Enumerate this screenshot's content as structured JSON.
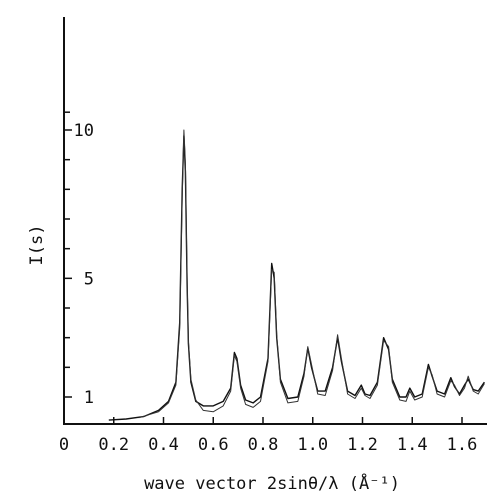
{
  "chart_data": {
    "type": "line",
    "xlabel": "wave vector   2sinθ/λ (Å⁻¹)",
    "ylabel": "I(s)",
    "xlim": [
      0,
      1.7
    ],
    "ylim": [
      0.2,
      11
    ],
    "x_ticks": [
      {
        "value": 0,
        "label": "0"
      },
      {
        "value": 0.2,
        "label": "0.2"
      },
      {
        "value": 0.4,
        "label": "0.4"
      },
      {
        "value": 0.6,
        "label": "0.6"
      },
      {
        "value": 0.8,
        "label": "0.8"
      },
      {
        "value": 1.0,
        "label": "1.0"
      },
      {
        "value": 1.2,
        "label": "1.2"
      },
      {
        "value": 1.4,
        "label": "1.4"
      },
      {
        "value": 1.6,
        "label": "1.6"
      }
    ],
    "y_ticks": [
      {
        "value": 1,
        "label": "1"
      },
      {
        "value": 5,
        "label": "5"
      },
      {
        "value": 10,
        "label": "10"
      }
    ],
    "y_minor_ticks": [
      2,
      3,
      4,
      6,
      7,
      8,
      9,
      10.6
    ],
    "series": [
      {
        "x": [
          0.18,
          0.25,
          0.32,
          0.38,
          0.42,
          0.45,
          0.465,
          0.475,
          0.482,
          0.488,
          0.495,
          0.5,
          0.51,
          0.53,
          0.56,
          0.6,
          0.64,
          0.67,
          0.685,
          0.695,
          0.71,
          0.73,
          0.76,
          0.79,
          0.82,
          0.835,
          0.845,
          0.855,
          0.87,
          0.9,
          0.94,
          0.965,
          0.98,
          0.995,
          1.02,
          1.05,
          1.08,
          1.1,
          1.115,
          1.14,
          1.17,
          1.195,
          1.21,
          1.23,
          1.26,
          1.285,
          1.305,
          1.32,
          1.35,
          1.375,
          1.39,
          1.41,
          1.44,
          1.465,
          1.48,
          1.5,
          1.53,
          1.555,
          1.57,
          1.59,
          1.61,
          1.625,
          1.645,
          1.665,
          1.69
        ],
        "values": [
          0.22,
          0.26,
          0.34,
          0.55,
          0.85,
          1.5,
          3.5,
          8.0,
          9.8,
          8.6,
          4.8,
          2.8,
          1.5,
          0.85,
          0.7,
          0.7,
          0.85,
          1.3,
          2.5,
          2.3,
          1.4,
          0.9,
          0.8,
          1.0,
          2.3,
          5.5,
          5.0,
          3.0,
          1.6,
          0.95,
          1.0,
          1.8,
          2.65,
          2.0,
          1.2,
          1.2,
          2.0,
          3.0,
          2.2,
          1.2,
          1.05,
          1.4,
          1.1,
          1.05,
          1.5,
          3.0,
          2.6,
          1.6,
          1.0,
          1.0,
          1.3,
          1.0,
          1.1,
          2.1,
          1.7,
          1.2,
          1.1,
          1.65,
          1.35,
          1.1,
          1.4,
          1.6,
          1.25,
          1.2,
          1.5
        ]
      },
      {
        "x": [
          0.3,
          0.38,
          0.42,
          0.45,
          0.465,
          0.475,
          0.482,
          0.488,
          0.495,
          0.5,
          0.51,
          0.53,
          0.56,
          0.6,
          0.64,
          0.67,
          0.685,
          0.695,
          0.71,
          0.73,
          0.76,
          0.79,
          0.82,
          0.835,
          0.845,
          0.855,
          0.87,
          0.9,
          0.94,
          0.965,
          0.98,
          0.995,
          1.02,
          1.05,
          1.08,
          1.1,
          1.115,
          1.14,
          1.17,
          1.195,
          1.21,
          1.23,
          1.26,
          1.285,
          1.305,
          1.32,
          1.35,
          1.375,
          1.39,
          1.41,
          1.44,
          1.465,
          1.48,
          1.5,
          1.53,
          1.555,
          1.57,
          1.59,
          1.61,
          1.625,
          1.645,
          1.665,
          1.69
        ],
        "values": [
          0.3,
          0.5,
          0.8,
          1.4,
          3.3,
          7.7,
          10.0,
          8.9,
          5.0,
          2.9,
          1.6,
          0.9,
          0.55,
          0.5,
          0.7,
          1.2,
          2.4,
          2.2,
          1.3,
          0.75,
          0.65,
          0.85,
          2.2,
          5.3,
          5.2,
          3.1,
          1.5,
          0.8,
          0.85,
          1.7,
          2.7,
          2.1,
          1.1,
          1.05,
          1.9,
          3.1,
          2.3,
          1.1,
          0.95,
          1.3,
          1.05,
          0.95,
          1.4,
          2.9,
          2.7,
          1.5,
          0.9,
          0.85,
          1.2,
          0.9,
          1.0,
          2.0,
          1.75,
          1.1,
          1.0,
          1.55,
          1.4,
          1.05,
          1.3,
          1.7,
          1.2,
          1.1,
          1.45
        ]
      }
    ]
  }
}
